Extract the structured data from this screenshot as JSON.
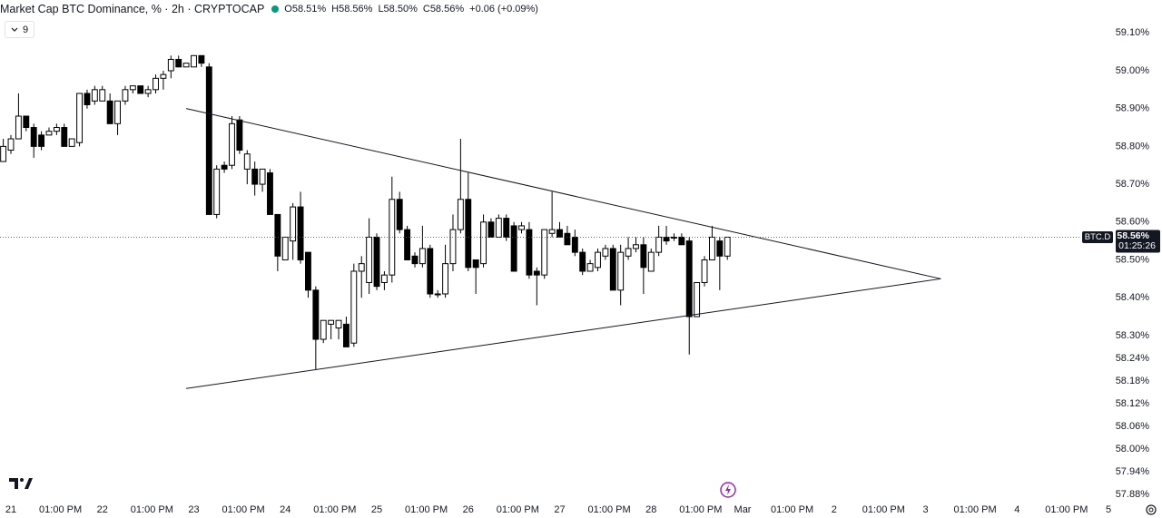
{
  "chart_data": {
    "type": "candlestick",
    "title": "Market Cap BTC Dominance, % · 2h · CRYPTOCAP",
    "legend": [
      "O58.51%",
      "H58.56%",
      "L58.50%",
      "C58.56%"
    ],
    "change": "+0.06 (+0.09%)",
    "indicator_count": "9",
    "symbol_tag": "BTC.D",
    "countdown": "01:25:26",
    "last_price": {
      "value": 58.56,
      "label": "58.56%"
    },
    "up_color": "#ffffff",
    "down_color": "#000000",
    "grid": false,
    "xlim": [
      -2.86,
      302.05
    ],
    "ylim": [
      57.868,
      59.187
    ],
    "xticks": [
      {
        "value": 0,
        "label": "21"
      },
      {
        "value": 13,
        "label": "01:00 PM"
      },
      {
        "value": 24,
        "label": "22"
      },
      {
        "value": 37,
        "label": "01:00 PM"
      },
      {
        "value": 48,
        "label": "23"
      },
      {
        "value": 61,
        "label": "01:00 PM"
      },
      {
        "value": 72,
        "label": "24"
      },
      {
        "value": 85,
        "label": "01:00 PM"
      },
      {
        "value": 96,
        "label": "25"
      },
      {
        "value": 109,
        "label": "01:00 PM"
      },
      {
        "value": 120,
        "label": "26"
      },
      {
        "value": 133,
        "label": "01:00 PM"
      },
      {
        "value": 144,
        "label": "27"
      },
      {
        "value": 157,
        "label": "01:00 PM"
      },
      {
        "value": 168,
        "label": "28"
      },
      {
        "value": 181,
        "label": "01:00 PM"
      },
      {
        "value": 192,
        "label": "Mar"
      },
      {
        "value": 205,
        "label": "01:00 PM"
      },
      {
        "value": 216,
        "label": "2"
      },
      {
        "value": 229,
        "label": "01:00 PM"
      },
      {
        "value": 240,
        "label": "3"
      },
      {
        "value": 253,
        "label": "01:00 PM"
      },
      {
        "value": 264,
        "label": "4"
      },
      {
        "value": 277,
        "label": "01:00 PM"
      },
      {
        "value": 288,
        "label": "5"
      }
    ],
    "yticks": [
      {
        "value": 59.1,
        "label": "59.10%"
      },
      {
        "value": 59.0,
        "label": "59.00%"
      },
      {
        "value": 58.9,
        "label": "58.90%"
      },
      {
        "value": 58.8,
        "label": "58.80%"
      },
      {
        "value": 58.7,
        "label": "58.70%"
      },
      {
        "value": 58.6,
        "label": "58.60%"
      },
      {
        "value": 58.5,
        "label": "58.50%"
      },
      {
        "value": 58.4,
        "label": "58.40%"
      },
      {
        "value": 58.3,
        "label": "58.30%"
      },
      {
        "value": 58.24,
        "label": "58.24%"
      },
      {
        "value": 58.18,
        "label": "58.18%"
      },
      {
        "value": 58.12,
        "label": "58.12%"
      },
      {
        "value": 58.06,
        "label": "58.06%"
      },
      {
        "value": 58.0,
        "label": "58.00%"
      },
      {
        "value": 57.94,
        "label": "57.94%"
      },
      {
        "value": 57.88,
        "label": "57.88%"
      }
    ],
    "x": [
      -2,
      0,
      2,
      4,
      6,
      8,
      10,
      12,
      14,
      16,
      18,
      20,
      22,
      24,
      26,
      28,
      30,
      32,
      34,
      36,
      38,
      40,
      42,
      44,
      46,
      48,
      50,
      52,
      54,
      56,
      58,
      60,
      62,
      64,
      66,
      68,
      70,
      72,
      74,
      76,
      78,
      80,
      82,
      84,
      86,
      88,
      90,
      92,
      94,
      96,
      98,
      100,
      102,
      104,
      106,
      108,
      110,
      112,
      114,
      116,
      118,
      120,
      122,
      124,
      126,
      128,
      130,
      132,
      134,
      136,
      138,
      140,
      142,
      144,
      146,
      148,
      150,
      152,
      154,
      156,
      158,
      160,
      162,
      164,
      166,
      168,
      170,
      172,
      174,
      176,
      178,
      180,
      182,
      184,
      186,
      188
    ],
    "open": [
      58.76,
      58.79,
      58.82,
      58.88,
      58.85,
      58.83,
      58.83,
      58.84,
      58.85,
      58.8,
      58.81,
      58.94,
      58.92,
      58.92,
      58.92,
      58.86,
      58.92,
      58.95,
      58.96,
      58.94,
      58.95,
      58.98,
      59.0,
      59.03,
      59.01,
      59.01,
      59.04,
      59.01,
      58.62,
      58.75,
      58.75,
      58.87,
      58.74,
      58.74,
      58.7,
      58.73,
      58.62,
      58.5,
      58.55,
      58.64,
      58.52,
      58.42,
      58.29,
      58.33,
      58.32,
      58.33,
      58.28,
      58.47,
      58.44,
      58.56,
      58.44,
      58.46,
      58.66,
      58.58,
      58.51,
      58.49,
      58.53,
      58.41,
      58.41,
      58.49,
      58.58,
      58.66,
      58.5,
      58.49,
      58.6,
      58.56,
      58.61,
      58.59,
      58.58,
      58.58,
      58.47,
      58.46,
      58.57,
      58.58,
      58.57,
      58.56,
      58.52,
      58.47,
      58.48,
      58.51,
      58.53,
      58.42,
      58.51,
      58.53,
      58.54,
      58.47,
      58.52,
      58.56,
      58.56,
      58.56,
      58.55,
      58.35,
      58.44,
      58.5,
      58.55,
      58.51
    ],
    "high": [
      58.82,
      58.83,
      58.94,
      58.88,
      58.86,
      58.84,
      58.85,
      58.86,
      58.86,
      58.82,
      58.94,
      58.95,
      58.96,
      58.96,
      58.94,
      58.92,
      58.96,
      58.96,
      58.96,
      58.96,
      58.99,
      59.0,
      59.04,
      59.04,
      59.02,
      59.04,
      59.04,
      59.02,
      58.75,
      58.76,
      58.88,
      58.88,
      58.79,
      58.76,
      58.74,
      58.74,
      58.62,
      58.56,
      58.65,
      58.68,
      58.52,
      58.43,
      58.34,
      58.34,
      58.34,
      58.35,
      58.49,
      58.51,
      58.61,
      58.57,
      58.47,
      58.72,
      58.68,
      58.59,
      58.52,
      58.59,
      58.54,
      58.42,
      58.54,
      58.62,
      58.82,
      58.73,
      58.5,
      58.62,
      58.61,
      58.62,
      58.62,
      58.6,
      58.6,
      58.6,
      58.48,
      58.58,
      58.68,
      58.6,
      58.59,
      58.58,
      58.53,
      58.5,
      58.53,
      58.54,
      58.54,
      58.54,
      58.56,
      58.56,
      58.56,
      58.53,
      58.59,
      58.59,
      58.57,
      58.57,
      58.56,
      58.44,
      58.51,
      58.59,
      58.56,
      58.56
    ],
    "low": [
      58.76,
      58.78,
      58.82,
      58.84,
      58.77,
      58.79,
      58.83,
      58.83,
      58.8,
      58.8,
      58.8,
      58.9,
      58.91,
      58.92,
      58.86,
      58.83,
      58.91,
      58.94,
      58.94,
      58.93,
      58.94,
      58.95,
      58.98,
      59.01,
      59.01,
      59.01,
      59.01,
      58.62,
      58.61,
      58.73,
      58.74,
      58.78,
      58.7,
      58.67,
      58.68,
      58.62,
      58.47,
      58.5,
      58.5,
      58.49,
      58.4,
      58.21,
      58.28,
      58.29,
      58.29,
      58.27,
      58.27,
      58.4,
      58.41,
      58.42,
      58.42,
      58.44,
      58.57,
      58.5,
      58.48,
      58.48,
      58.4,
      58.4,
      58.4,
      58.47,
      58.57,
      58.47,
      58.41,
      58.48,
      58.56,
      58.56,
      58.55,
      58.47,
      58.57,
      58.45,
      58.38,
      58.45,
      58.56,
      58.56,
      58.54,
      58.51,
      58.46,
      58.47,
      58.47,
      58.5,
      58.42,
      58.38,
      58.5,
      58.52,
      58.41,
      58.47,
      58.51,
      58.54,
      58.55,
      58.54,
      58.25,
      58.35,
      58.43,
      58.5,
      58.42,
      58.5
    ],
    "close": [
      58.8,
      58.82,
      58.88,
      58.85,
      58.8,
      58.8,
      58.84,
      58.85,
      58.8,
      58.82,
      58.94,
      58.91,
      58.95,
      58.95,
      58.86,
      58.92,
      58.95,
      58.96,
      58.94,
      58.95,
      58.98,
      58.99,
      59.03,
      59.01,
      59.02,
      59.04,
      59.02,
      58.62,
      58.74,
      58.74,
      58.86,
      58.79,
      58.78,
      58.7,
      58.74,
      58.62,
      58.51,
      58.56,
      58.64,
      58.5,
      58.42,
      58.29,
      58.34,
      58.34,
      58.34,
      58.27,
      58.47,
      58.49,
      58.56,
      58.43,
      58.46,
      58.66,
      58.58,
      58.5,
      58.49,
      58.53,
      58.41,
      58.41,
      58.49,
      58.58,
      58.66,
      58.48,
      58.48,
      58.6,
      58.56,
      58.61,
      58.56,
      58.47,
      58.59,
      58.46,
      58.46,
      58.58,
      58.58,
      58.56,
      58.54,
      58.52,
      58.47,
      58.49,
      58.52,
      58.53,
      58.42,
      58.52,
      58.53,
      58.54,
      58.48,
      58.52,
      58.56,
      58.55,
      58.56,
      58.54,
      58.35,
      58.44,
      58.5,
      58.56,
      58.51,
      58.56
    ],
    "trendlines": [
      {
        "x": [
          46,
          244
        ],
        "y": [
          58.9,
          58.45
        ]
      },
      {
        "x": [
          46,
          244
        ],
        "y": [
          58.16,
          58.45
        ]
      }
    ]
  }
}
